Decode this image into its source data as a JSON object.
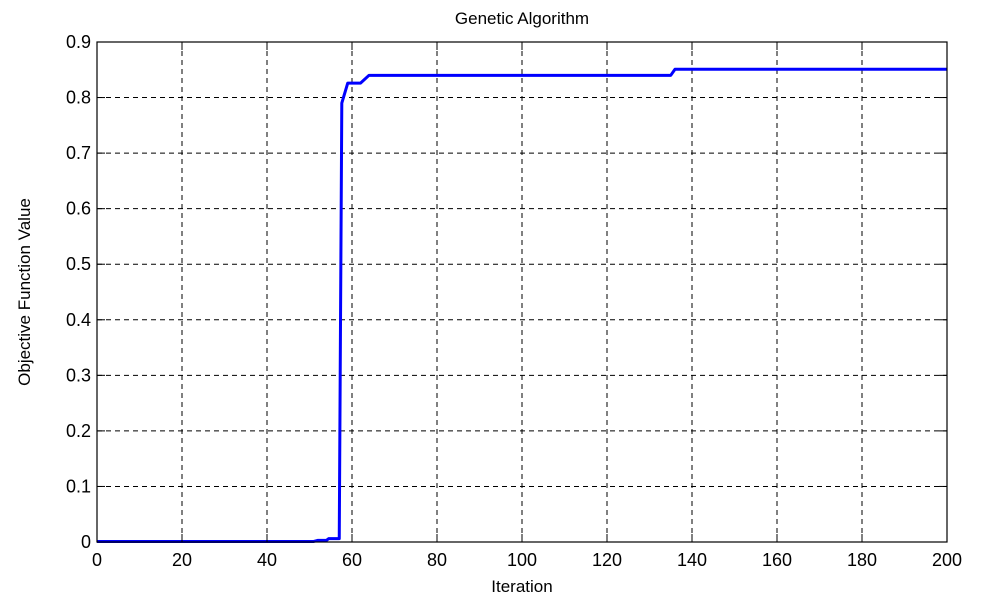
{
  "chart_data": {
    "type": "line",
    "title": "Genetic Algorithm",
    "xlabel": "Iteration",
    "ylabel": "Objective Function Value",
    "xlim": [
      0,
      200
    ],
    "ylim": [
      0,
      0.9
    ],
    "xticks": [
      0,
      20,
      40,
      60,
      80,
      100,
      120,
      140,
      160,
      180,
      200
    ],
    "yticks": [
      0,
      0.1,
      0.2,
      0.3,
      0.4,
      0.5,
      0.6,
      0.7,
      0.8,
      0.9
    ],
    "xtick_labels": [
      "0",
      "20",
      "40",
      "60",
      "80",
      "100",
      "120",
      "140",
      "160",
      "180",
      "200"
    ],
    "ytick_labels": [
      "0",
      "0.1",
      "0.2",
      "0.3",
      "0.4",
      "0.5",
      "0.6",
      "0.7",
      "0.8",
      "0.9"
    ],
    "grid": true,
    "line_color": "#0000ff",
    "series": [
      {
        "x": [
          0,
          51,
          52,
          54,
          54.5,
          57,
          57.3,
          57.6,
          59,
          59.5,
          62,
          64,
          135,
          136,
          200
        ],
        "y": [
          0.001,
          0.001,
          0.003,
          0.003,
          0.006,
          0.006,
          0.4,
          0.79,
          0.826,
          0.826,
          0.826,
          0.84,
          0.84,
          0.851,
          0.851
        ]
      }
    ]
  }
}
